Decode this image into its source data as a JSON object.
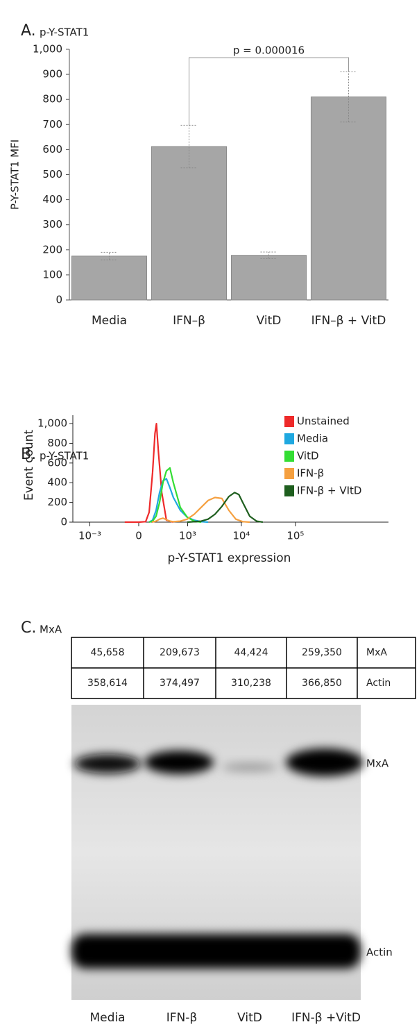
{
  "chart_data": [
    {
      "type": "bar",
      "label": "A.",
      "title": "p-Y-STAT1",
      "y_label": "P-Y-STAT1 MFI",
      "categories": [
        "Media",
        "IFN–β",
        "VitD",
        "IFN–β + VitD"
      ],
      "values": [
        175,
        612,
        178,
        810
      ],
      "errors": [
        15,
        85,
        13,
        100
      ],
      "color": "#a6a6a6",
      "ylim": [
        0,
        1000
      ],
      "yticks": [
        0,
        100,
        200,
        300,
        400,
        500,
        600,
        700,
        800,
        900,
        {
          "value": 1000,
          "label": "1,000"
        }
      ],
      "annotation": "p = 0.000016"
    },
    {
      "type": "line",
      "label": "B.",
      "title": "p-Y-STAT1",
      "x_label": "p-Y-STAT1 expression",
      "y_label": "Event count",
      "xscale": "biexponential",
      "xlim": [
        -2086,
        5250000
      ],
      "xticks": [
        {
          "value": -1000,
          "label": "10⁻³"
        },
        0,
        {
          "value": 1000,
          "label": "10³"
        },
        {
          "value": 10000,
          "label": "10⁴"
        },
        {
          "value": 100000,
          "label": "10⁵"
        }
      ],
      "ylim": [
        0,
        1085
      ],
      "yticks": [
        0,
        200,
        400,
        600,
        800,
        {
          "value": 1000,
          "label": "1,000"
        }
      ],
      "legend": "top-right",
      "series": [
        {
          "name": "Unstained",
          "color": "#ee2a2a",
          "x": [
            -160,
            0,
            76,
            116,
            158,
            190,
            210,
            240,
            290,
            373,
            525
          ],
          "values": [
            0,
            0,
            5,
            100,
            500,
            900,
            1000,
            700,
            300,
            20,
            0
          ]
        },
        {
          "name": "Media",
          "color": "#1fa8e0",
          "x": [
            116,
            158,
            205,
            255,
            310,
            373,
            444,
            525,
            722,
            983,
            1333,
            1797,
            2420
          ],
          "values": [
            0,
            20,
            120,
            300,
            420,
            440,
            350,
            250,
            120,
            50,
            20,
            5,
            0
          ]
        },
        {
          "name": "VitD",
          "color": "#33dd33",
          "x": [
            116,
            158,
            205,
            255,
            310,
            373,
            444,
            525,
            722,
            983,
            1333,
            1797
          ],
          "values": [
            0,
            10,
            60,
            200,
            400,
            520,
            550,
            400,
            150,
            50,
            10,
            0
          ]
        },
        {
          "name": "IFN-β",
          "color": "#f5a040",
          "x": [
            150,
            205,
            255,
            310,
            373,
            444,
            525,
            722,
            983,
            1333,
            1797,
            2420,
            3254,
            4374,
            5879,
            7900,
            10620,
            14270
          ],
          "values": [
            0,
            10,
            30,
            40,
            25,
            10,
            5,
            10,
            30,
            80,
            150,
            220,
            250,
            240,
            120,
            30,
            5,
            0
          ]
        },
        {
          "name": "IFN-β + VItD",
          "color": "#1e5e1e",
          "x": [
            983,
            1797,
            2420,
            3254,
            4374,
            5879,
            7500,
            9000,
            10620,
            14270,
            19160,
            25000
          ],
          "values": [
            0,
            10,
            30,
            80,
            160,
            260,
            300,
            280,
            200,
            60,
            10,
            0
          ]
        }
      ]
    }
  ],
  "panel_c": {
    "label": "C.",
    "title": "MxA",
    "table": {
      "rows": [
        [
          "45,658",
          "209,673",
          "44,424",
          "259,350",
          "MxA"
        ],
        [
          "358,614",
          "374,497",
          "310,238",
          "366,850",
          "Actin"
        ]
      ]
    },
    "band_labels": [
      "MxA",
      "Actin"
    ],
    "lanes": [
      "Media",
      "IFN-β",
      "VitD",
      "IFN-β +VitD"
    ]
  }
}
